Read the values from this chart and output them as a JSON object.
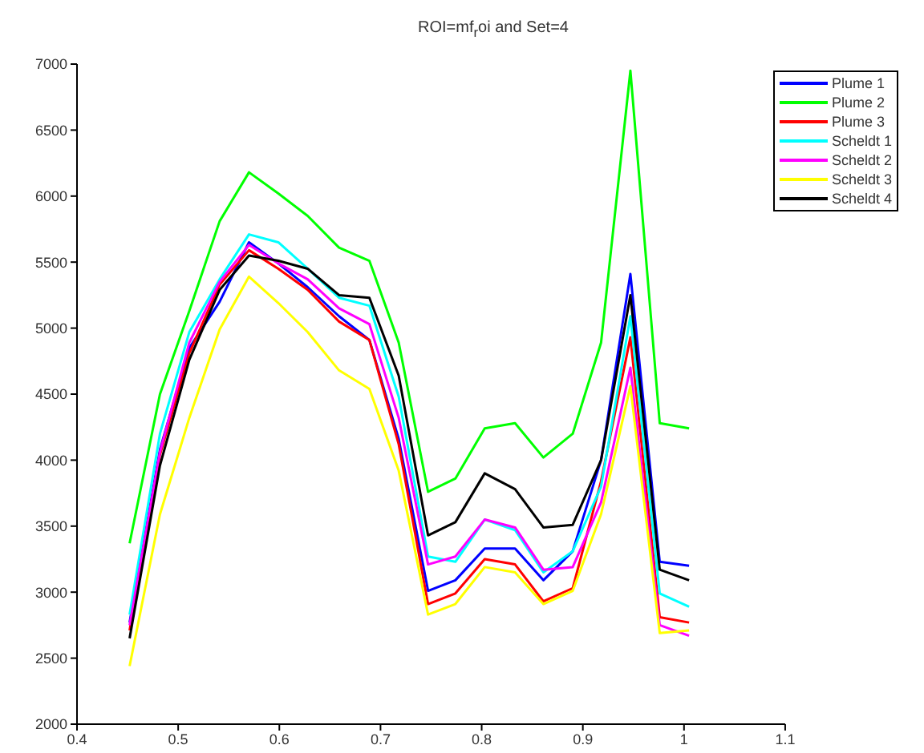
{
  "chart_data": {
    "type": "line",
    "title": "ROI=mf$_{r}$oi and Set=4",
    "x": [
      0.452,
      0.482,
      0.511,
      0.541,
      0.57,
      0.599,
      0.628,
      0.659,
      0.689,
      0.718,
      0.747,
      0.774,
      0.803,
      0.833,
      0.861,
      0.89,
      0.918,
      0.947,
      0.976,
      1.005
    ],
    "series": [
      {
        "name": "Plume 1",
        "color": "#0000ff",
        "values": [
          2770,
          4080,
          4850,
          5200,
          5650,
          5490,
          5310,
          5090,
          4910,
          4160,
          3010,
          3090,
          3330,
          3330,
          3090,
          3310,
          4000,
          5410,
          3230,
          3200
        ]
      },
      {
        "name": "Plume 2",
        "color": "#00ff00",
        "values": [
          3370,
          4500,
          5130,
          5810,
          6180,
          6020,
          5850,
          5610,
          5510,
          4890,
          3760,
          3860,
          4240,
          4280,
          4020,
          4200,
          4890,
          6950,
          4280,
          4240
        ]
      },
      {
        "name": "Plume 3",
        "color": "#ff0000",
        "values": [
          2710,
          4040,
          4810,
          5330,
          5590,
          5450,
          5290,
          5050,
          4910,
          4120,
          2910,
          2990,
          3250,
          3210,
          2930,
          3030,
          3840,
          4930,
          2810,
          2770
        ]
      },
      {
        "name": "Scheldt 1",
        "color": "#00ffff",
        "values": [
          2830,
          4200,
          4970,
          5370,
          5710,
          5650,
          5450,
          5230,
          5170,
          4480,
          3270,
          3230,
          3550,
          3470,
          3150,
          3310,
          3800,
          5090,
          2990,
          2890
        ]
      },
      {
        "name": "Scheldt 2",
        "color": "#ff00ff",
        "values": [
          2750,
          4060,
          4890,
          5350,
          5630,
          5490,
          5370,
          5150,
          5030,
          4320,
          3210,
          3270,
          3550,
          3490,
          3170,
          3190,
          3680,
          4700,
          2750,
          2670
        ]
      },
      {
        "name": "Scheldt 3",
        "color": "#ffff00",
        "values": [
          2440,
          3590,
          4320,
          4990,
          5390,
          5190,
          4970,
          4680,
          4540,
          3920,
          2830,
          2910,
          3190,
          3150,
          2910,
          3010,
          3590,
          4560,
          2690,
          2710
        ]
      },
      {
        "name": "Scheldt 4",
        "color": "#000000",
        "values": [
          2650,
          3960,
          4760,
          5290,
          5550,
          5510,
          5450,
          5250,
          5230,
          4640,
          3430,
          3530,
          3900,
          3780,
          3490,
          3510,
          4000,
          5250,
          3170,
          3090
        ]
      }
    ],
    "xlim": [
      0.4,
      1.1
    ],
    "xticks": [
      0.4,
      0.5,
      0.6,
      0.7,
      0.8,
      0.9,
      1,
      1.1
    ],
    "ylim": [
      2000,
      7000
    ],
    "yticks": [
      2000,
      2500,
      3000,
      3500,
      4000,
      4500,
      5000,
      5500,
      6000,
      6500,
      7000
    ],
    "grid": false,
    "legend": "top right",
    "marker": "none",
    "line_style": "solid"
  }
}
